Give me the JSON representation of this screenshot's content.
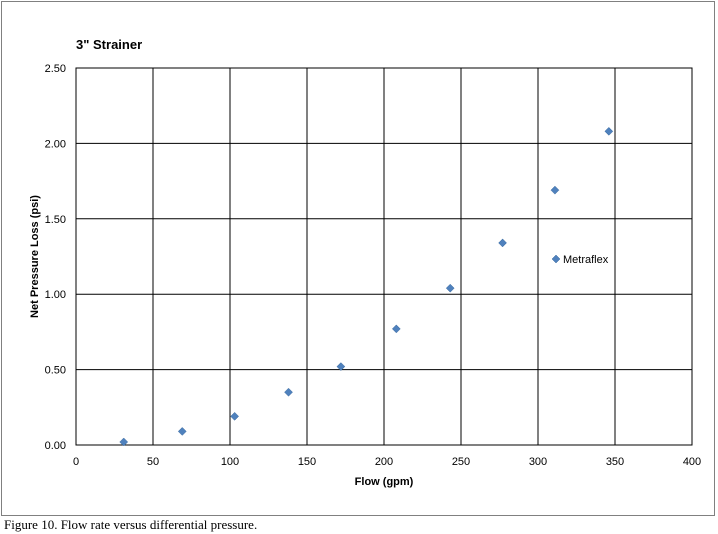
{
  "chart_data": {
    "type": "scatter",
    "title": "3\" Strainer",
    "xlabel": "Flow (gpm)",
    "ylabel": "Net Pressure Loss (psi)",
    "xlim": [
      0,
      400
    ],
    "ylim": [
      0,
      2.5
    ],
    "x_ticks": [
      "0",
      "50",
      "100",
      "150",
      "200",
      "250",
      "300",
      "350",
      "400"
    ],
    "y_ticks": [
      "0.00",
      "0.50",
      "1.00",
      "1.50",
      "2.00",
      "2.50"
    ],
    "grid": true,
    "legend_position": "right",
    "series": [
      {
        "name": "Metraflex",
        "color": "#4F81BD",
        "marker": "diamond",
        "x": [
          31,
          69,
          103,
          138,
          172,
          208,
          243,
          277,
          311,
          346
        ],
        "y": [
          0.02,
          0.09,
          0.19,
          0.35,
          0.52,
          0.77,
          1.04,
          1.34,
          1.69,
          2.08
        ]
      }
    ]
  },
  "caption": "Figure 10.  Flow rate versus differential pressure."
}
